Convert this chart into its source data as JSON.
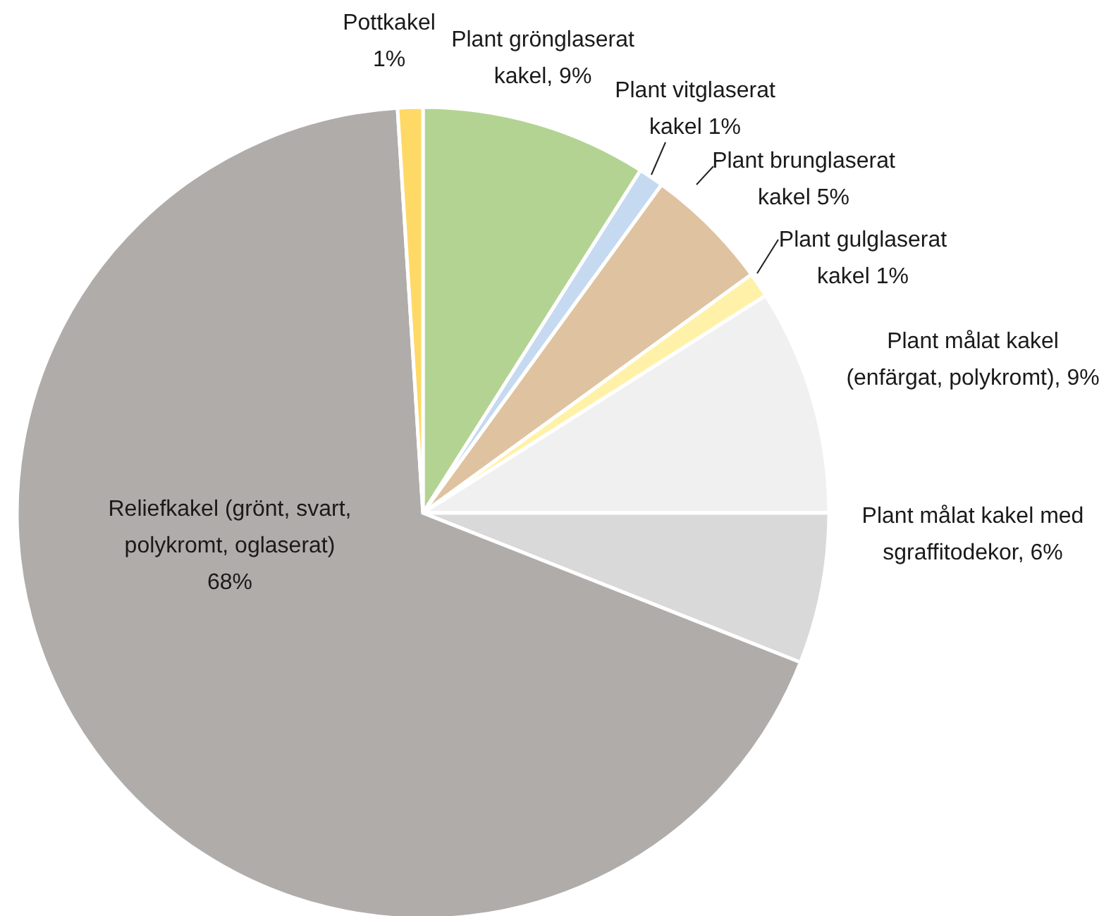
{
  "chart_data": {
    "type": "pie",
    "categories": [
      "Plant grönglaserat kakel, 9%",
      "Plant vitglaserat kakel 1%",
      "Plant brunglaserat kakel 5%",
      "Plant gulglaserat kakel 1%",
      "Plant målat kakel (enfärgat, polykromt), 9%",
      "Plant målat kakel med sgraffitodekor, 6%",
      "Reliefkakel (grönt, svart, polykromt, oglaserat) 68%",
      "Pottkakel 1%"
    ],
    "values": [
      9,
      1,
      5,
      1,
      9,
      6,
      68,
      1
    ],
    "colors": [
      "#b3d393",
      "#c5daf0",
      "#dfc29f",
      "#fff2a8",
      "#f0f0f0",
      "#d9d9d9",
      "#b0acaa",
      "#ffd966"
    ]
  }
}
